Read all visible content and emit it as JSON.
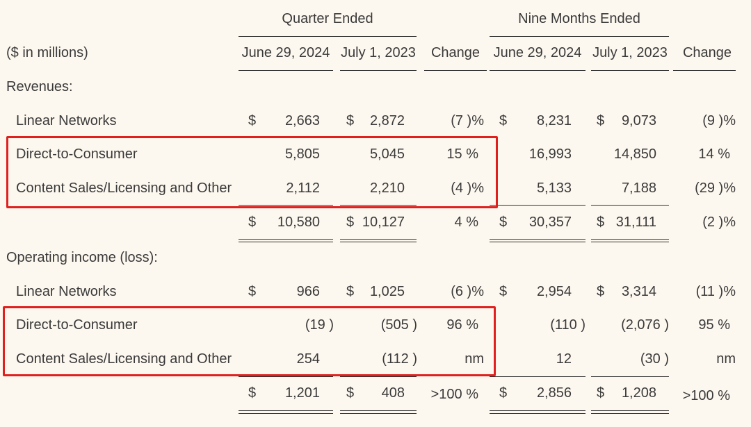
{
  "header": {
    "group_quarter": "Quarter Ended",
    "group_nine": "Nine Months Ended",
    "unit_label": "($ in millions)",
    "col1": "June 29, 2024",
    "col2": "July 1, 2023",
    "col3": "Change",
    "col4": "June 29, 2024",
    "col5": "July 1, 2023",
    "col6": "Change"
  },
  "currency": "$",
  "sections": {
    "revenues": {
      "title": "Revenues:",
      "rows": [
        {
          "label": "Linear Networks",
          "q24": "2,663",
          "q23": "2,872",
          "qchg": "(7 )%",
          "n24": "8,231",
          "n23": "9,073",
          "nchg": "(9 )%"
        },
        {
          "label": "Direct-to-Consumer",
          "q24": "5,805",
          "q23": "5,045",
          "qchg": "15 %",
          "n24": "16,993",
          "n23": "14,850",
          "nchg": "14 %"
        },
        {
          "label": "Content Sales/Licensing and Other",
          "q24": "2,112",
          "q23": "2,210",
          "qchg": "(4 )%",
          "n24": "5,133",
          "n23": "7,188",
          "nchg": "(29 )%"
        }
      ],
      "total": {
        "q24": "10,580",
        "q23": "10,127",
        "qchg": "4 %",
        "n24": "30,357",
        "n23": "31,111",
        "nchg": "(2 )%"
      }
    },
    "operating": {
      "title": "Operating income (loss):",
      "rows": [
        {
          "label": "Linear Networks",
          "q24": "966",
          "q23": "1,025",
          "qchg": "(6 )%",
          "n24": "2,954",
          "n23": "3,314",
          "nchg": "(11 )%"
        },
        {
          "label": "Direct-to-Consumer",
          "q24": "(19 )",
          "q23": "(505 )",
          "qchg": "96 %",
          "n24": "(110 )",
          "n23": "(2,076 )",
          "nchg": "95 %"
        },
        {
          "label": "Content Sales/Licensing and Other",
          "q24": "254",
          "q23": "(112 )",
          "qchg": "nm",
          "n24": "12",
          "n23": "(30 )",
          "nchg": "nm"
        }
      ],
      "total": {
        "q24": "1,201",
        "q23": "408",
        "qchg": ">100 %",
        "n24": "2,856",
        "n23": "1,208",
        "nchg": ">100 %"
      }
    }
  },
  "colors": {
    "background": "#fdf8ef",
    "highlight": "#e0201f",
    "text": "#3a3a3a"
  }
}
